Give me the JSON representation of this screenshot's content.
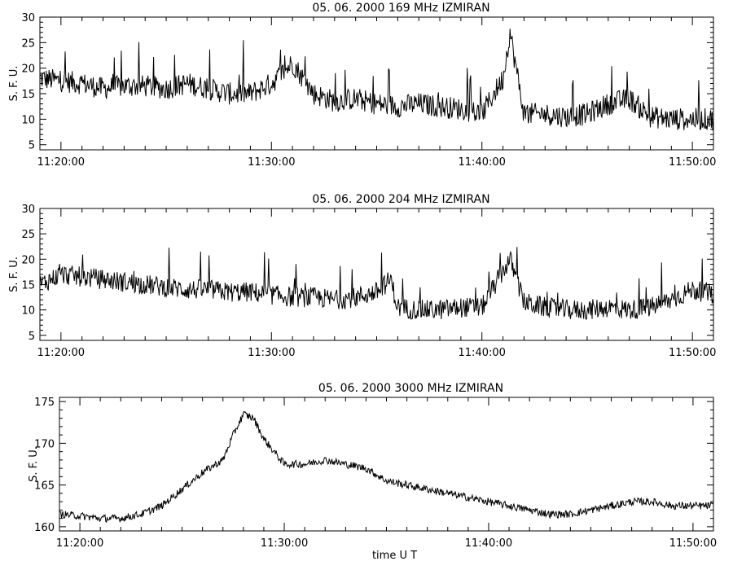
{
  "chart_data": [
    {
      "type": "line",
      "title": "05.  06.  2000    169  MHz    IZMIRAN",
      "ylabel": "S. F. U.",
      "xlabel": "",
      "xlim": [
        "11:19:00",
        "11:51:00"
      ],
      "ylim": [
        4,
        30
      ],
      "yticks": [
        5,
        10,
        15,
        20,
        25,
        30
      ],
      "xticks": [
        "11:20:00",
        "11:30:00",
        "11:40:00",
        "11:50:00"
      ],
      "grid": false,
      "series": [
        {
          "points": [
            [
              "11:19:00",
              18
            ],
            [
              "11:20:00",
              17.5
            ],
            [
              "11:21:00",
              17
            ],
            [
              "11:22:00",
              16
            ],
            [
              "11:23:00",
              16.5
            ],
            [
              "11:24:00",
              16.5
            ],
            [
              "11:25:00",
              16
            ],
            [
              "11:26:00",
              17
            ],
            [
              "11:27:00",
              16
            ],
            [
              "11:28:00",
              15
            ],
            [
              "11:29:00",
              15
            ],
            [
              "11:30:00",
              17
            ],
            [
              "11:31:00",
              21
            ],
            [
              "11:32:00",
              15
            ],
            [
              "11:33:00",
              13.5
            ],
            [
              "11:34:00",
              14
            ],
            [
              "11:35:00",
              13
            ],
            [
              "11:36:00",
              12.5
            ],
            [
              "11:37:00",
              13
            ],
            [
              "11:38:00",
              12.5
            ],
            [
              "11:39:00",
              12
            ],
            [
              "11:40:00",
              11
            ],
            [
              "11:41:00",
              18
            ],
            [
              "11:41:20",
              27
            ],
            [
              "11:42:00",
              11
            ],
            [
              "11:43:00",
              11
            ],
            [
              "11:44:00",
              10.5
            ],
            [
              "11:45:00",
              11
            ],
            [
              "11:46:00",
              13
            ],
            [
              "11:47:00",
              14
            ],
            [
              "11:48:00",
              10.5
            ],
            [
              "11:49:00",
              10
            ],
            [
              "11:50:00",
              10
            ],
            [
              "11:51:00",
              10
            ]
          ]
        }
      ]
    },
    {
      "type": "line",
      "title": "05.  06.  2000    204  MHz    IZMIRAN",
      "ylabel": "S. F. U.",
      "xlabel": "",
      "xlim": [
        "11:19:00",
        "11:51:00"
      ],
      "ylim": [
        4,
        30
      ],
      "yticks": [
        5,
        10,
        15,
        20,
        25,
        30
      ],
      "xticks": [
        "11:20:00",
        "11:30:00",
        "11:40:00",
        "11:50:00"
      ],
      "grid": false,
      "series": [
        {
          "points": [
            [
              "11:19:00",
              15
            ],
            [
              "11:20:00",
              17
            ],
            [
              "11:21:00",
              16.5
            ],
            [
              "11:22:00",
              16
            ],
            [
              "11:23:00",
              15.5
            ],
            [
              "11:24:00",
              15
            ],
            [
              "11:25:00",
              14.5
            ],
            [
              "11:26:00",
              14
            ],
            [
              "11:27:00",
              14
            ],
            [
              "11:28:00",
              13.5
            ],
            [
              "11:29:00",
              13.5
            ],
            [
              "11:30:00",
              13
            ],
            [
              "11:31:00",
              12.5
            ],
            [
              "11:32:00",
              12.5
            ],
            [
              "11:33:00",
              12
            ],
            [
              "11:34:00",
              12.5
            ],
            [
              "11:35:00",
              13.5
            ],
            [
              "11:35:40",
              16
            ],
            [
              "11:36:00",
              10.5
            ],
            [
              "11:37:00",
              10
            ],
            [
              "11:38:00",
              10
            ],
            [
              "11:39:00",
              10.5
            ],
            [
              "11:40:00",
              10.5
            ],
            [
              "11:41:20",
              20
            ],
            [
              "11:42:00",
              11.5
            ],
            [
              "11:43:00",
              10.5
            ],
            [
              "11:44:00",
              10
            ],
            [
              "11:45:00",
              10
            ],
            [
              "11:46:00",
              10.5
            ],
            [
              "11:47:00",
              10
            ],
            [
              "11:48:00",
              10.5
            ],
            [
              "11:49:00",
              12
            ],
            [
              "11:50:00",
              14
            ],
            [
              "11:51:00",
              13
            ]
          ]
        }
      ]
    },
    {
      "type": "line",
      "title": "05.  06.  2000    3000  MHz    IZMIRAN",
      "ylabel": "S. F. U.",
      "xlabel": "time   U T",
      "xlim": [
        "11:19:00",
        "11:51:00"
      ],
      "ylim": [
        159.5,
        175.5
      ],
      "yticks": [
        160,
        165,
        170,
        175
      ],
      "xticks": [
        "11:20:00",
        "11:30:00",
        "11:40:00",
        "11:50:00"
      ],
      "grid": false,
      "series": [
        {
          "points": [
            [
              "11:19:00",
              161.5
            ],
            [
              "11:20:00",
              161.3
            ],
            [
              "11:21:00",
              161
            ],
            [
              "11:22:00",
              161
            ],
            [
              "11:23:00",
              161.5
            ],
            [
              "11:24:00",
              162.5
            ],
            [
              "11:25:00",
              164.5
            ],
            [
              "11:26:00",
              166.5
            ],
            [
              "11:27:00",
              168
            ],
            [
              "11:27:30",
              171
            ],
            [
              "11:28:00",
              173.5
            ],
            [
              "11:28:30",
              173
            ],
            [
              "11:29:00",
              170.5
            ],
            [
              "11:30:00",
              167.5
            ],
            [
              "11:31:00",
              167.5
            ],
            [
              "11:32:00",
              168
            ],
            [
              "11:33:00",
              167.5
            ],
            [
              "11:34:00",
              167
            ],
            [
              "11:35:00",
              165.5
            ],
            [
              "11:36:00",
              165
            ],
            [
              "11:37:00",
              164.5
            ],
            [
              "11:38:00",
              164
            ],
            [
              "11:39:00",
              163.5
            ],
            [
              "11:40:00",
              163
            ],
            [
              "11:41:00",
              162.5
            ],
            [
              "11:42:00",
              162
            ],
            [
              "11:43:00",
              161.5
            ],
            [
              "11:44:00",
              161.5
            ],
            [
              "11:45:00",
              162
            ],
            [
              "11:46:00",
              162.5
            ],
            [
              "11:47:00",
              163
            ],
            [
              "11:48:00",
              163
            ],
            [
              "11:49:00",
              162.5
            ],
            [
              "11:50:00",
              162.5
            ],
            [
              "11:51:00",
              162.5
            ]
          ]
        }
      ]
    }
  ]
}
